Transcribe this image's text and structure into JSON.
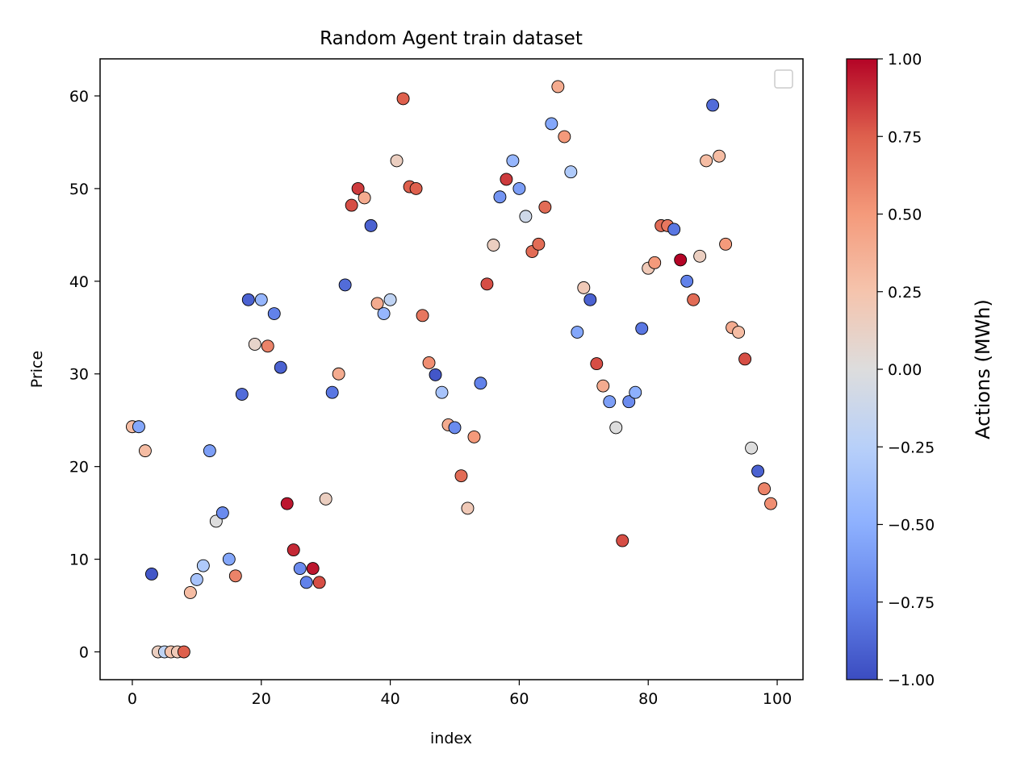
{
  "chart_data": {
    "type": "scatter",
    "title": "Random Agent train dataset",
    "xlabel": "index",
    "ylabel": "Price",
    "xlim": [
      -5,
      104
    ],
    "ylim": [
      -3,
      64
    ],
    "xticks": [
      0,
      20,
      40,
      60,
      80,
      100
    ],
    "yticks": [
      0,
      10,
      20,
      30,
      40,
      50,
      60
    ],
    "grid": false,
    "legend": {
      "placement": "top-right",
      "entries": []
    },
    "colorbar": {
      "label": "Actions (MWh)",
      "colormap": "coolwarm",
      "range": [
        -1,
        1
      ],
      "ticks": [
        1.0,
        0.75,
        0.5,
        0.25,
        0.0,
        -0.25,
        -0.5,
        -0.75,
        -1.0
      ],
      "tick_labels": [
        "1.00",
        "0.75",
        "0.50",
        "0.25",
        "0.00",
        "−0.25",
        "−0.50",
        "−0.75",
        "−1.00"
      ]
    },
    "points": [
      {
        "x": 0,
        "y": 24.3,
        "c": 0.3
      },
      {
        "x": 1,
        "y": 24.3,
        "c": -0.55
      },
      {
        "x": 2,
        "y": 21.7,
        "c": 0.3
      },
      {
        "x": 3,
        "y": 8.4,
        "c": -0.95
      },
      {
        "x": 4,
        "y": 0,
        "c": 0.15
      },
      {
        "x": 5,
        "y": 0,
        "c": -0.2
      },
      {
        "x": 6,
        "y": 0,
        "c": 0.25
      },
      {
        "x": 7,
        "y": 0,
        "c": 0.2
      },
      {
        "x": 8,
        "y": 0,
        "c": 0.75
      },
      {
        "x": 9,
        "y": 6.4,
        "c": 0.3
      },
      {
        "x": 10,
        "y": 7.8,
        "c": -0.35
      },
      {
        "x": 11,
        "y": 9.3,
        "c": -0.3
      },
      {
        "x": 12,
        "y": 21.7,
        "c": -0.6
      },
      {
        "x": 13,
        "y": 14.1,
        "c": 0.0
      },
      {
        "x": 14,
        "y": 15.0,
        "c": -0.7
      },
      {
        "x": 15,
        "y": 10.0,
        "c": -0.55
      },
      {
        "x": 16,
        "y": 8.2,
        "c": 0.6
      },
      {
        "x": 17,
        "y": 27.8,
        "c": -0.85
      },
      {
        "x": 18,
        "y": 38.0,
        "c": -0.9
      },
      {
        "x": 19,
        "y": 33.2,
        "c": 0.1
      },
      {
        "x": 20,
        "y": 38.0,
        "c": -0.45
      },
      {
        "x": 21,
        "y": 33.0,
        "c": 0.6
      },
      {
        "x": 22,
        "y": 36.5,
        "c": -0.75
      },
      {
        "x": 23,
        "y": 30.7,
        "c": -0.9
      },
      {
        "x": 24,
        "y": 16.0,
        "c": 0.95
      },
      {
        "x": 25,
        "y": 11.0,
        "c": 0.9
      },
      {
        "x": 26,
        "y": 9.0,
        "c": -0.7
      },
      {
        "x": 27,
        "y": 7.5,
        "c": -0.75
      },
      {
        "x": 28,
        "y": 9.0,
        "c": 0.95
      },
      {
        "x": 29,
        "y": 7.5,
        "c": 0.8
      },
      {
        "x": 30,
        "y": 16.5,
        "c": 0.15
      },
      {
        "x": 31,
        "y": 28.0,
        "c": -0.8
      },
      {
        "x": 32,
        "y": 30.0,
        "c": 0.4
      },
      {
        "x": 33,
        "y": 39.6,
        "c": -0.85
      },
      {
        "x": 34,
        "y": 48.2,
        "c": 0.8
      },
      {
        "x": 35,
        "y": 50.0,
        "c": 0.85
      },
      {
        "x": 36,
        "y": 49.0,
        "c": 0.4
      },
      {
        "x": 37,
        "y": 46.0,
        "c": -0.9
      },
      {
        "x": 38,
        "y": 37.6,
        "c": 0.4
      },
      {
        "x": 39,
        "y": 36.5,
        "c": -0.45
      },
      {
        "x": 40,
        "y": 38.0,
        "c": -0.2
      },
      {
        "x": 41,
        "y": 53.0,
        "c": 0.15
      },
      {
        "x": 42,
        "y": 59.7,
        "c": 0.75
      },
      {
        "x": 43,
        "y": 50.2,
        "c": 0.75
      },
      {
        "x": 44,
        "y": 50.0,
        "c": 0.75
      },
      {
        "x": 45,
        "y": 36.3,
        "c": 0.65
      },
      {
        "x": 46,
        "y": 31.2,
        "c": 0.55
      },
      {
        "x": 47,
        "y": 29.9,
        "c": -0.95
      },
      {
        "x": 48,
        "y": 28.0,
        "c": -0.35
      },
      {
        "x": 49,
        "y": 24.5,
        "c": 0.4
      },
      {
        "x": 50,
        "y": 24.2,
        "c": -0.7
      },
      {
        "x": 51,
        "y": 19.0,
        "c": 0.7
      },
      {
        "x": 52,
        "y": 15.5,
        "c": 0.2
      },
      {
        "x": 53,
        "y": 23.2,
        "c": 0.5
      },
      {
        "x": 54,
        "y": 29.0,
        "c": -0.75
      },
      {
        "x": 55,
        "y": 39.7,
        "c": 0.8
      },
      {
        "x": 56,
        "y": 43.9,
        "c": 0.15
      },
      {
        "x": 57,
        "y": 49.1,
        "c": -0.65
      },
      {
        "x": 58,
        "y": 51.0,
        "c": 0.85
      },
      {
        "x": 59,
        "y": 53.0,
        "c": -0.45
      },
      {
        "x": 60,
        "y": 50.0,
        "c": -0.6
      },
      {
        "x": 61,
        "y": 47.0,
        "c": -0.1
      },
      {
        "x": 62,
        "y": 43.2,
        "c": 0.7
      },
      {
        "x": 63,
        "y": 44.0,
        "c": 0.7
      },
      {
        "x": 64,
        "y": 48.0,
        "c": 0.7
      },
      {
        "x": 65,
        "y": 57.0,
        "c": -0.55
      },
      {
        "x": 66,
        "y": 61.0,
        "c": 0.4
      },
      {
        "x": 67,
        "y": 55.6,
        "c": 0.5
      },
      {
        "x": 68,
        "y": 51.8,
        "c": -0.3
      },
      {
        "x": 69,
        "y": 34.5,
        "c": -0.55
      },
      {
        "x": 70,
        "y": 39.3,
        "c": 0.2
      },
      {
        "x": 71,
        "y": 38.0,
        "c": -0.9
      },
      {
        "x": 72,
        "y": 31.1,
        "c": 0.8
      },
      {
        "x": 73,
        "y": 28.7,
        "c": 0.4
      },
      {
        "x": 74,
        "y": 27.0,
        "c": -0.6
      },
      {
        "x": 75,
        "y": 24.2,
        "c": 0.0
      },
      {
        "x": 76,
        "y": 12.0,
        "c": 0.8
      },
      {
        "x": 77,
        "y": 27.0,
        "c": -0.7
      },
      {
        "x": 78,
        "y": 28.0,
        "c": -0.5
      },
      {
        "x": 79,
        "y": 34.9,
        "c": -0.8
      },
      {
        "x": 80,
        "y": 41.4,
        "c": 0.2
      },
      {
        "x": 81,
        "y": 42.0,
        "c": 0.5
      },
      {
        "x": 82,
        "y": 46.0,
        "c": 0.7
      },
      {
        "x": 83,
        "y": 46.0,
        "c": 0.65
      },
      {
        "x": 84,
        "y": 45.6,
        "c": -0.8
      },
      {
        "x": 85,
        "y": 42.3,
        "c": 1.0
      },
      {
        "x": 86,
        "y": 40.0,
        "c": -0.75
      },
      {
        "x": 87,
        "y": 38.0,
        "c": 0.7
      },
      {
        "x": 88,
        "y": 42.7,
        "c": 0.15
      },
      {
        "x": 89,
        "y": 53.0,
        "c": 0.3
      },
      {
        "x": 90,
        "y": 59.0,
        "c": -0.85
      },
      {
        "x": 91,
        "y": 53.5,
        "c": 0.3
      },
      {
        "x": 92,
        "y": 44.0,
        "c": 0.5
      },
      {
        "x": 93,
        "y": 35.0,
        "c": 0.4
      },
      {
        "x": 94,
        "y": 34.5,
        "c": 0.3
      },
      {
        "x": 95,
        "y": 31.6,
        "c": 0.8
      },
      {
        "x": 96,
        "y": 22.0,
        "c": 0.0
      },
      {
        "x": 97,
        "y": 19.5,
        "c": -0.9
      },
      {
        "x": 98,
        "y": 17.6,
        "c": 0.6
      },
      {
        "x": 99,
        "y": 16.0,
        "c": 0.55
      }
    ]
  }
}
